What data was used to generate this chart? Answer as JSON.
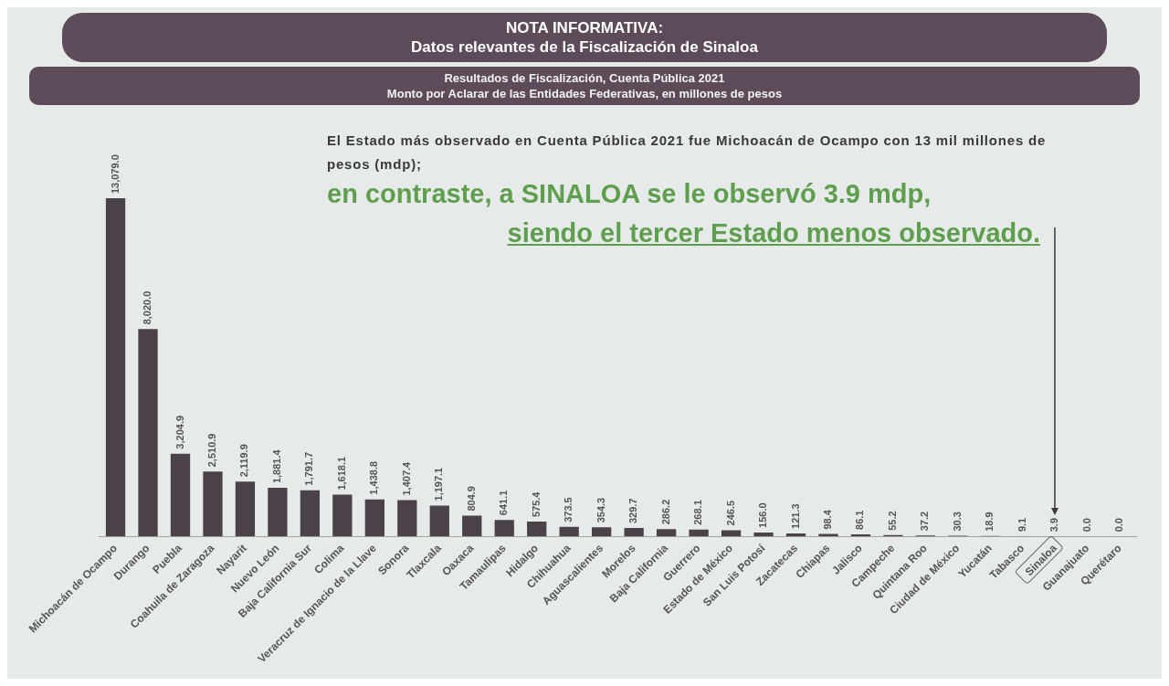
{
  "chart_data": {
    "type": "bar",
    "title": "NOTA INFORMATIVA:",
    "subtitle": "Datos relevantes de la Fiscalización de Sinaloa",
    "annotations": [
      "Resultados de Fiscalización, Cuenta Pública 2021",
      "Monto por Aclarar de las Entidades Federativas, en millones de pesos",
      "El Estado más observado en Cuenta Pública 2021 fue Michoacán de Ocampo con 13 mil millones de pesos (mdp);",
      "en contraste, a SINALOA se le observó 3.9 mdp,",
      "siendo el tercer Estado menos observado."
    ],
    "categories": [
      "Michoacán de Ocampo",
      "Durango",
      "Puebla",
      "Coahuila de Zaragoza",
      "Nayarit",
      "Nuevo León",
      "Baja California Sur",
      "Colima",
      "Veracruz de Ignacio de la Llave",
      "Sonora",
      "Tlaxcala",
      "Oaxaca",
      "Tamaulipas",
      "Hidalgo",
      "Chihuahua",
      "Aguascalientes",
      "Morelos",
      "Baja California",
      "Guerrero",
      "Estado de México",
      "San Luis Potosí",
      "Zacatecas",
      "Chiapas",
      "Jalisco",
      "Campeche",
      "Quintana Roo",
      "Ciudad de México",
      "Yucatán",
      "Tabasco",
      "Sinaloa",
      "Guanajuato",
      "Querétaro"
    ],
    "values": [
      13079.0,
      8020.0,
      3204.9,
      2510.9,
      2119.9,
      1881.4,
      1791.7,
      1618.1,
      1438.8,
      1407.4,
      1197.1,
      804.9,
      641.1,
      575.4,
      373.5,
      354.3,
      329.7,
      286.2,
      268.1,
      246.5,
      156.0,
      121.3,
      98.4,
      86.1,
      55.2,
      37.2,
      30.3,
      18.9,
      9.1,
      3.9,
      0.0,
      0.0
    ],
    "value_labels": [
      "13,079.0",
      "8,020.0",
      "3,204.9",
      "2,510.9",
      "2,119.9",
      "1,881.4",
      "1,791.7",
      "1,618.1",
      "1,438.8",
      "1,407.4",
      "1,197.1",
      "804.9",
      "641.1",
      "575.4",
      "373.5",
      "354.3",
      "329.7",
      "286.2",
      "268.1",
      "246.5",
      "156.0",
      "121.3",
      "98.4",
      "86.1",
      "55.2",
      "37.2",
      "30.3",
      "18.9",
      "9.1",
      "3.9",
      "0.0",
      "0.0"
    ],
    "color": "#4b4149",
    "tick_labels": "x"
  }
}
